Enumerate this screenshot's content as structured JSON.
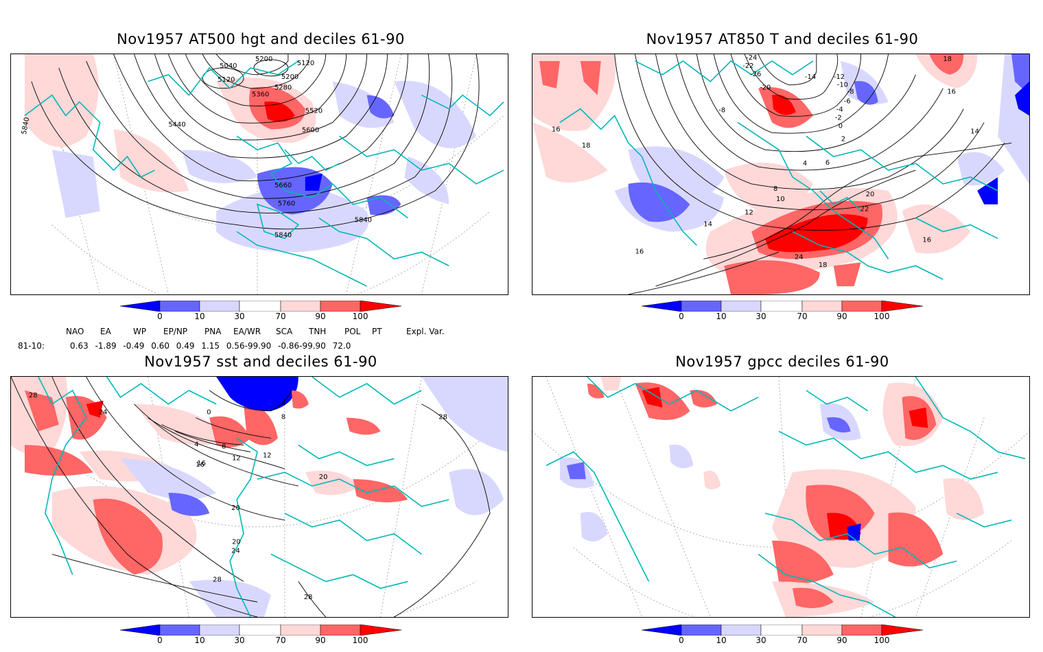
{
  "panels": [
    {
      "title": "Nov1957 AT500 hgt and deciles 61-90",
      "contour_labels": [
        "5040",
        "5200",
        "5120",
        "5120",
        "5200",
        "5280",
        "5360",
        "5520",
        "5440",
        "5600",
        "5660",
        "5760",
        "5840",
        "5840",
        "5840"
      ]
    },
    {
      "title": "Nov1957 AT850 T and deciles 61-90",
      "contour_labels": [
        "-24",
        "-22",
        "-26",
        "-20",
        "-14",
        "-12",
        "-10",
        "-8",
        "-6",
        "-4",
        "-2",
        "0",
        "2",
        "4",
        "6",
        "8",
        "10",
        "12",
        "14",
        "16",
        "18",
        "20",
        "22",
        "24",
        "18",
        "16",
        "14",
        "16",
        "18",
        "16",
        "-8"
      ]
    },
    {
      "title": "Nov1957 sst and deciles 61-90",
      "contour_labels": [
        "28",
        "24",
        "20",
        "0",
        "4",
        "8",
        "12",
        "12",
        "16",
        "20",
        "20",
        "24",
        "28",
        "28",
        "4",
        "8",
        "16",
        "28"
      ]
    },
    {
      "title": "Nov1957 gpcc deciles 61-90",
      "contour_labels": []
    }
  ],
  "colorbar": {
    "ticks": [
      "0",
      "10",
      "30",
      "70",
      "90",
      "100"
    ],
    "colors": [
      "#0000ff",
      "#6666ff",
      "#d8d8ff",
      "#ffffff",
      "#ffd8d8",
      "#ff6666",
      "#ff0000"
    ]
  },
  "indices": {
    "headers": [
      "NAO",
      "EA",
      "WP",
      "EP/NP",
      "PNA",
      "EA/WR",
      "SCA",
      "TNH",
      "POL",
      "PT",
      "Expl. Var."
    ],
    "row_label": "81-10:",
    "values": "0.63 -1.89 -0.49 0.60 0.49 1.15 0.56-99.90 -0.86-99.90 72.0"
  }
}
